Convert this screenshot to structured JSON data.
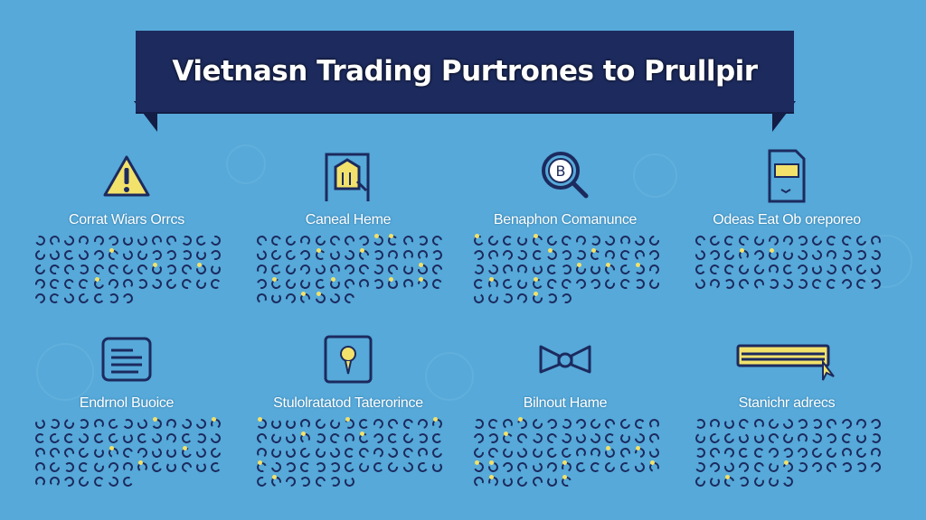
{
  "banner": {
    "title": "Vietnasn Trading Purtrones to Prullpir"
  },
  "colors": {
    "background": "#56a9d9",
    "banner": "#1c2a5e",
    "accent": "#f2e26b"
  },
  "cards": [
    {
      "label": "Corrat Wiars Orrcs",
      "icon": "warning-icon"
    },
    {
      "label": "Caneal Heme",
      "icon": "house-frame-icon"
    },
    {
      "label": "Benaphon Comanunce",
      "icon": "magnifier-coin-icon"
    },
    {
      "label": "Odeas Eat Ob oreporeo",
      "icon": "document-icon"
    },
    {
      "label": "Endrnol Buoice",
      "icon": "text-box-icon"
    },
    {
      "label": "Stulolratatod Taterorince",
      "icon": "lightbulb-icon"
    },
    {
      "label": "Bilnout Hame",
      "icon": "handshake-icon"
    },
    {
      "label": "Stanichr adrecs",
      "icon": "cursor-bar-icon"
    }
  ]
}
